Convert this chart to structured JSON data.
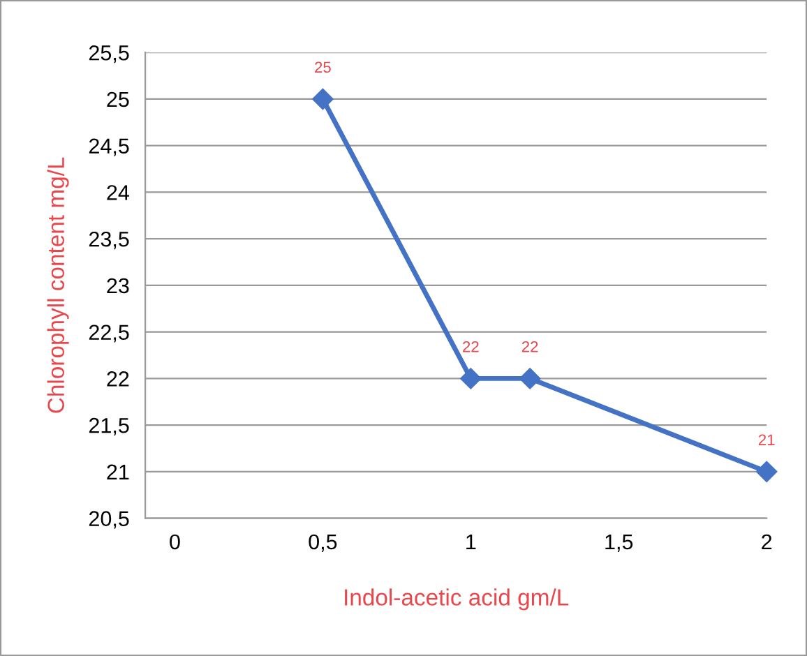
{
  "chart_data": {
    "type": "line",
    "xlabel": "Indol-acetic acid gm/L",
    "ylabel": "Chlorophyll content mg/L",
    "x": [
      0.5,
      1,
      1.2,
      2
    ],
    "series": [
      {
        "color": "#4472c4",
        "values": [
          25,
          22,
          22,
          21
        ]
      }
    ],
    "data_labels": true,
    "marker": "diamond",
    "line_style": "solid",
    "grid": "y",
    "xlim": [
      -0.1,
      2
    ],
    "xticks": [
      0,
      {
        "value": 0.5,
        "label": "0,5"
      },
      1,
      {
        "value": 1.5,
        "label": "1,5"
      },
      2
    ],
    "ylim": [
      20.5,
      25.5
    ],
    "yticks": [
      {
        "value": 20.5,
        "label": "20,5"
      },
      21,
      {
        "value": 21.5,
        "label": "21,5"
      },
      22,
      {
        "value": 22.5,
        "label": "22,5"
      },
      23,
      {
        "value": 23.5,
        "label": "23,5"
      },
      24,
      {
        "value": 24.5,
        "label": "24,5"
      },
      25,
      {
        "value": 25.5,
        "label": "25,5"
      }
    ]
  }
}
